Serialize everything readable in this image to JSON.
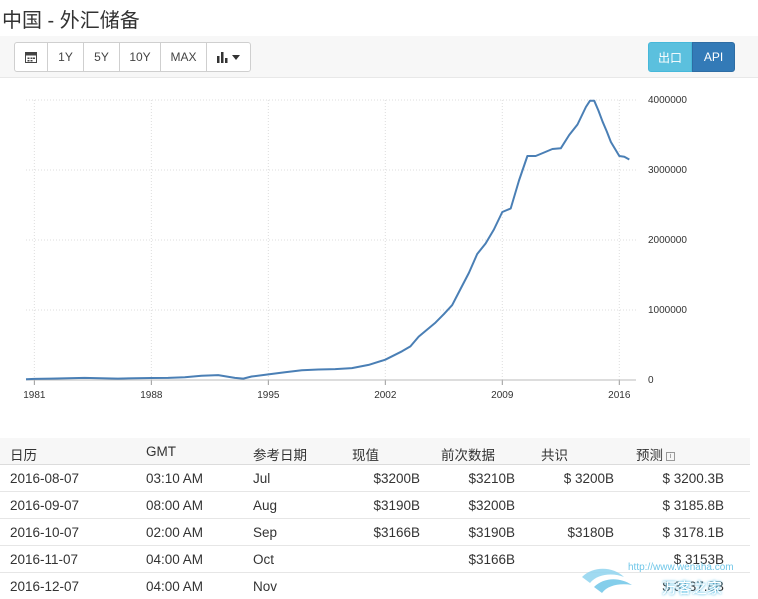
{
  "page": {
    "title": "中国 - 外汇储备"
  },
  "toolbar": {
    "buttons": [
      "1Y",
      "5Y",
      "10Y",
      "MAX"
    ],
    "export_label": "出口",
    "api_label": "API"
  },
  "icons": {
    "calendar": "calendar-icon",
    "chart_type": "bar-chart-icon",
    "dropdown": "caret-down-icon",
    "info": "info-icon"
  },
  "colors": {
    "series": "#4a7fb5",
    "export_button": "#5bc0de",
    "api_button": "#337ab7"
  },
  "chart_data": {
    "type": "line",
    "x_tick_labels": [
      "1981",
      "1988",
      "1995",
      "2002",
      "2009",
      "2016"
    ],
    "y_tick_labels": [
      "0",
      "1000000",
      "2000000",
      "3000000",
      "4000000"
    ],
    "xlim": [
      1980.5,
      2017.0
    ],
    "ylim": [
      0,
      4000000
    ],
    "grid": true,
    "y_axis_side": "right",
    "series": [
      {
        "x": [
          1980.5,
          1981,
          1982,
          1983,
          1984,
          1985,
          1986,
          1987,
          1988,
          1989,
          1990,
          1991,
          1992,
          1993,
          1993.5,
          1994,
          1995,
          1996,
          1997,
          1998,
          1999,
          2000,
          2001,
          2002,
          2003,
          2003.5,
          2004,
          2004.5,
          2005,
          2005.5,
          2006,
          2006.5,
          2007,
          2007.5,
          2008,
          2008.5,
          2009,
          2009.5,
          2010,
          2010.5,
          2011,
          2011.5,
          2012,
          2012.5,
          2013,
          2013.5,
          2014,
          2014.25,
          2014.5,
          2014.75,
          2015,
          2015.25,
          2015.5,
          2015.75,
          2016,
          2016.3,
          2016.6
        ],
        "y": [
          10000,
          15000,
          20000,
          25000,
          30000,
          25000,
          20000,
          25000,
          28000,
          30000,
          40000,
          60000,
          70000,
          30000,
          20000,
          50000,
          80000,
          110000,
          140000,
          150000,
          155000,
          170000,
          215000,
          290000,
          410000,
          480000,
          620000,
          720000,
          820000,
          940000,
          1070000,
          1300000,
          1530000,
          1800000,
          1950000,
          2150000,
          2400000,
          2450000,
          2850000,
          3200000,
          3200000,
          3250000,
          3300000,
          3310000,
          3500000,
          3650000,
          3900000,
          3990000,
          3990000,
          3850000,
          3690000,
          3550000,
          3400000,
          3300000,
          3200000,
          3190000,
          3150000
        ]
      }
    ]
  },
  "table": {
    "headers": {
      "date": "日历",
      "gmt": "GMT",
      "reference": "参考日期",
      "actual": "现值",
      "previous": "前次数据",
      "consensus": "共识",
      "forecast": "预测"
    },
    "rows": [
      {
        "date": "2016-08-07",
        "gmt": "03:10 AM",
        "reference": "Jul",
        "actual": "$3200B",
        "previous": "$3210B",
        "consensus": "$ 3200B",
        "forecast": "$ 3200.3B"
      },
      {
        "date": "2016-09-07",
        "gmt": "08:00 AM",
        "reference": "Aug",
        "actual": "$3190B",
        "previous": "$3200B",
        "consensus": "",
        "forecast": "$ 3185.8B"
      },
      {
        "date": "2016-10-07",
        "gmt": "02:00 AM",
        "reference": "Sep",
        "actual": "$3166B",
        "previous": "$3190B",
        "consensus": "$3180B",
        "forecast": "$ 3178.1B"
      },
      {
        "date": "2016-11-07",
        "gmt": "04:00 AM",
        "reference": "Oct",
        "actual": "",
        "previous": "$3166B",
        "consensus": "",
        "forecast": "$ 3153B"
      },
      {
        "date": "2016-12-07",
        "gmt": "04:00 AM",
        "reference": "Nov",
        "actual": "",
        "previous": "",
        "consensus": "",
        "forecast": "$ 3137.8B"
      }
    ]
  },
  "watermark": {
    "url": "http://www.wenaha.com",
    "name": "万客之家"
  }
}
